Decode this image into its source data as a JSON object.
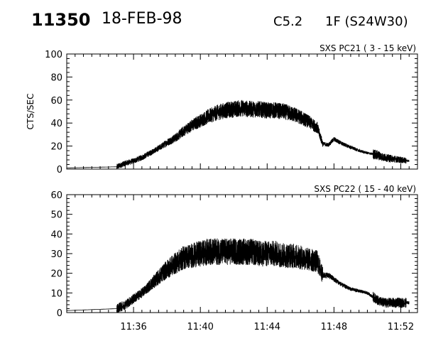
{
  "header": {
    "event": "11350",
    "date": "18-FEB-98",
    "flare_class": "C5.2",
    "location": "1F (S24W30)"
  },
  "chart_data": [
    {
      "type": "line",
      "title": "SXS PC21  (  3 - 15 keV)",
      "ylabel": "CTS/SEC",
      "xlim": [
        "11:32",
        "11:53"
      ],
      "ylim": [
        0,
        100
      ],
      "yticks": [
        0,
        20,
        40,
        60,
        80,
        100
      ],
      "grid": false,
      "series": [
        {
          "x": [
            "11:32:00",
            "11:35:00",
            "11:35:30",
            "11:36:00",
            "11:36:30",
            "11:37:00",
            "11:37:30",
            "11:38:00",
            "11:38:30",
            "11:39:00",
            "11:39:30",
            "11:40:00",
            "11:40:30",
            "11:41:00",
            "11:41:30",
            "11:42:00",
            "11:42:30",
            "11:43:00",
            "11:43:30",
            "11:44:00",
            "11:44:30",
            "11:45:00",
            "11:45:30",
            "11:46:00",
            "11:46:30",
            "11:47:00",
            "11:47:20",
            "11:47:40",
            "11:48:00",
            "11:48:30",
            "11:49:00",
            "11:49:30",
            "11:50:00",
            "11:50:20",
            "11:50:40",
            "11:51:00",
            "11:51:30",
            "11:52:00",
            "11:52:30"
          ],
          "y": [
            1,
            2,
            5,
            7,
            10,
            14,
            18,
            23,
            27,
            33,
            38,
            42,
            46,
            49,
            51,
            52,
            53,
            52,
            52,
            51,
            51,
            50,
            48,
            45,
            41,
            36,
            22,
            21,
            26,
            22,
            19,
            16,
            14,
            13,
            12,
            10,
            9,
            8,
            7
          ]
        }
      ]
    },
    {
      "type": "line",
      "title": "SXS PC22  ( 15 - 40 keV)",
      "ylabel": "",
      "xlim": [
        "11:32",
        "11:53"
      ],
      "ylim": [
        0,
        60
      ],
      "yticks": [
        0,
        10,
        20,
        30,
        40,
        50,
        60
      ],
      "xticklabels": [
        "11:36",
        "11:40",
        "11:44",
        "11:48",
        "11:52"
      ],
      "grid": false,
      "series": [
        {
          "x": [
            "11:32:00",
            "11:35:00",
            "11:35:30",
            "11:36:00",
            "11:36:30",
            "11:37:00",
            "11:37:30",
            "11:38:00",
            "11:38:30",
            "11:39:00",
            "11:39:30",
            "11:40:00",
            "11:40:30",
            "11:41:00",
            "11:41:30",
            "11:42:00",
            "11:42:30",
            "11:43:00",
            "11:43:30",
            "11:44:00",
            "11:44:30",
            "11:45:00",
            "11:45:30",
            "11:46:00",
            "11:46:30",
            "11:47:00",
            "11:47:20",
            "11:47:40",
            "11:48:00",
            "11:48:30",
            "11:49:00",
            "11:49:30",
            "11:50:00",
            "11:50:20",
            "11:50:40",
            "11:51:00",
            "11:51:30",
            "11:52:00",
            "11:52:30"
          ],
          "y": [
            1,
            2,
            4,
            7,
            10,
            14,
            18,
            22,
            25,
            28,
            29,
            30,
            31,
            31,
            31,
            31,
            31,
            31,
            30,
            30,
            30,
            29,
            29,
            28,
            27,
            26,
            19,
            19,
            17,
            14,
            12,
            11,
            10,
            8,
            6,
            5,
            5,
            5,
            5
          ]
        }
      ]
    }
  ]
}
